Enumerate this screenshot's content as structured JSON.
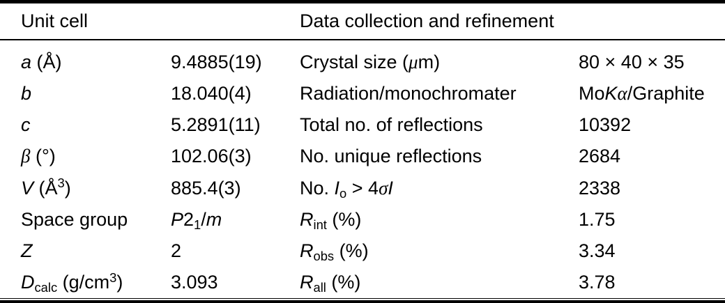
{
  "table": {
    "header": {
      "left": "Unit cell",
      "right": "Data collection and refinement"
    },
    "rows": [
      {
        "l1": [
          {
            "t": "a",
            "s": "i"
          },
          {
            "t": " (Å)"
          }
        ],
        "v1": [
          {
            "t": "9.4885(19)"
          }
        ],
        "l2": [
          {
            "t": "Crystal size ("
          },
          {
            "t": "μ",
            "s": "g"
          },
          {
            "t": "m)"
          }
        ],
        "v2": [
          {
            "t": "80 × 40 × 35"
          }
        ]
      },
      {
        "l1": [
          {
            "t": "b",
            "s": "i"
          }
        ],
        "v1": [
          {
            "t": "18.040(4)"
          }
        ],
        "l2": [
          {
            "t": "Radiation/monochromater"
          }
        ],
        "v2": [
          {
            "t": "Mo"
          },
          {
            "t": "K",
            "s": "i"
          },
          {
            "t": "α",
            "s": "g"
          },
          {
            "t": "/Graphite"
          }
        ]
      },
      {
        "l1": [
          {
            "t": "c",
            "s": "i"
          }
        ],
        "v1": [
          {
            "t": "5.2891(11)"
          }
        ],
        "l2": [
          {
            "t": "Total no. of reflections"
          }
        ],
        "v2": [
          {
            "t": "10392"
          }
        ]
      },
      {
        "l1": [
          {
            "t": "β",
            "s": "g"
          },
          {
            "t": " (°)"
          }
        ],
        "v1": [
          {
            "t": "102.06(3)"
          }
        ],
        "l2": [
          {
            "t": "No. unique reflections"
          }
        ],
        "v2": [
          {
            "t": "2684"
          }
        ]
      },
      {
        "l1": [
          {
            "t": "V",
            "s": "i"
          },
          {
            "t": " (Å"
          },
          {
            "t": "3",
            "s": "sup"
          },
          {
            "t": ")"
          }
        ],
        "v1": [
          {
            "t": "885.4(3)"
          }
        ],
        "l2": [
          {
            "t": "No. "
          },
          {
            "t": "I",
            "s": "i"
          },
          {
            "t": "o",
            "s": "sub"
          },
          {
            "t": " > 4"
          },
          {
            "t": "σ",
            "s": "g"
          },
          {
            "t": "I",
            "s": "i"
          }
        ],
        "v2": [
          {
            "t": "2338"
          }
        ]
      },
      {
        "l1": [
          {
            "t": "Space group"
          }
        ],
        "v1": [
          {
            "t": "P",
            "s": "i"
          },
          {
            "t": "2"
          },
          {
            "t": "1",
            "s": "sub"
          },
          {
            "t": "/"
          },
          {
            "t": "m",
            "s": "i"
          }
        ],
        "l2": [
          {
            "t": "R",
            "s": "i"
          },
          {
            "t": "int",
            "s": "sub"
          },
          {
            "t": " (%)"
          }
        ],
        "v2": [
          {
            "t": "1.75"
          }
        ]
      },
      {
        "l1": [
          {
            "t": "Z",
            "s": "i"
          }
        ],
        "v1": [
          {
            "t": "2"
          }
        ],
        "l2": [
          {
            "t": "R",
            "s": "i"
          },
          {
            "t": "obs",
            "s": "sub"
          },
          {
            "t": " (%)"
          }
        ],
        "v2": [
          {
            "t": "3.34"
          }
        ]
      },
      {
        "l1": [
          {
            "t": "D",
            "s": "i"
          },
          {
            "t": "calc",
            "s": "sub"
          },
          {
            "t": " (g/cm"
          },
          {
            "t": "3",
            "s": "sup"
          },
          {
            "t": ")"
          }
        ],
        "v1": [
          {
            "t": "3.093"
          }
        ],
        "l2": [
          {
            "t": "R",
            "s": "i"
          },
          {
            "t": "all",
            "s": "sub"
          },
          {
            "t": " (%)"
          }
        ],
        "v2": [
          {
            "t": "3.78"
          }
        ]
      }
    ]
  }
}
